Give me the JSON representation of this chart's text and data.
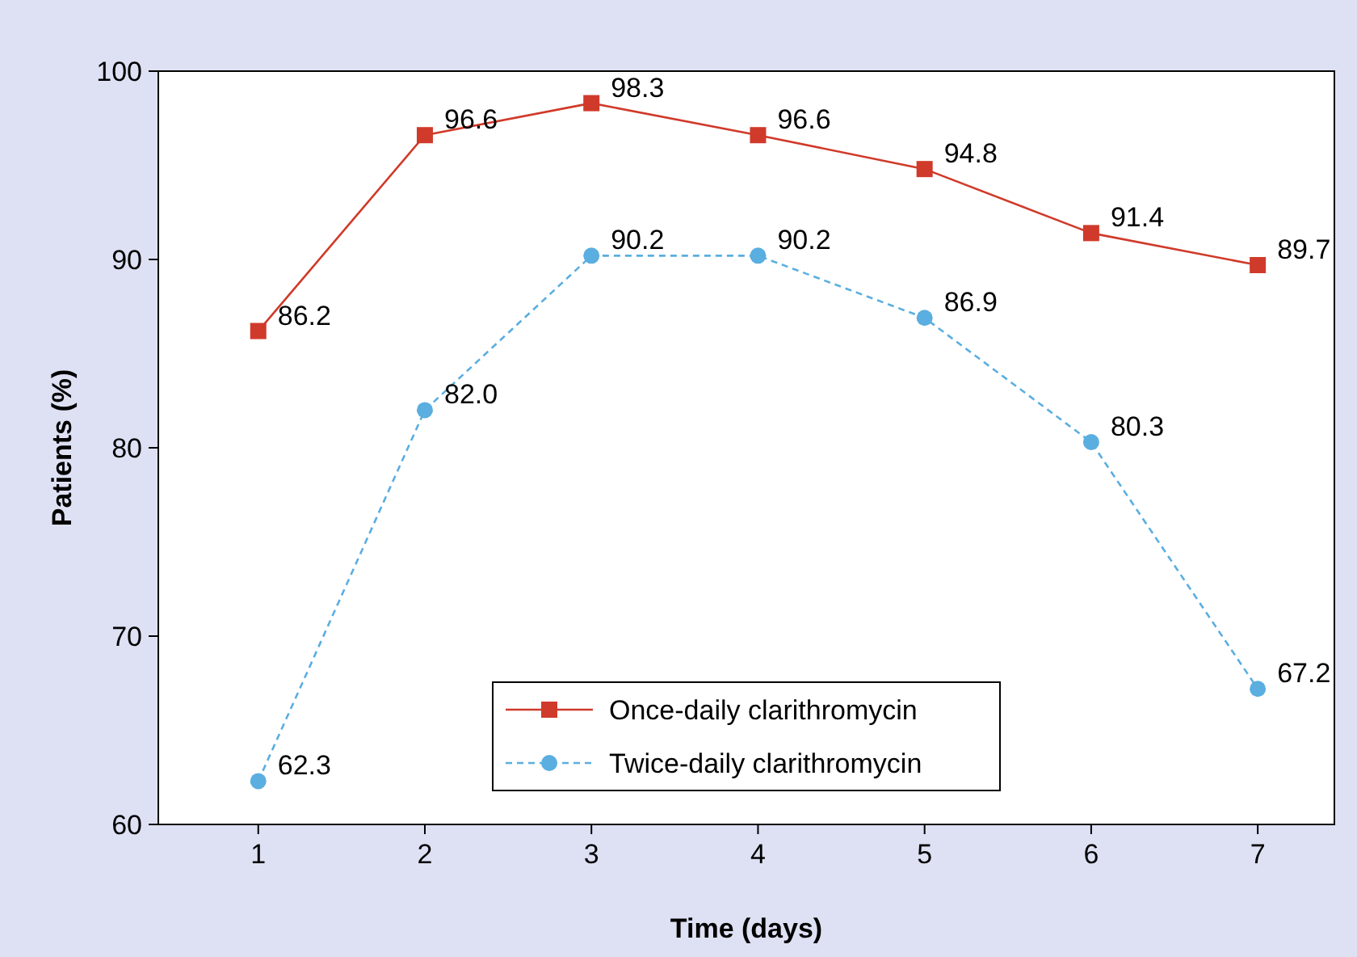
{
  "chart_data": {
    "type": "line",
    "xlabel": "Time (days)",
    "ylabel": "Patients (%)",
    "x": [
      1,
      2,
      3,
      4,
      5,
      6,
      7
    ],
    "series": [
      {
        "name": "Once-daily clarithromycin",
        "color": "#d03a2a",
        "marker": "square",
        "line_style": "solid",
        "values": [
          86.2,
          96.6,
          98.3,
          96.6,
          94.8,
          91.4,
          89.7
        ],
        "value_labels": [
          "86.2",
          "96.6",
          "98.3",
          "96.6",
          "94.8",
          "91.4",
          "89.7"
        ]
      },
      {
        "name": "Twice-daily clarithromycin",
        "color": "#5aaee0",
        "marker": "circle",
        "line_style": "dashed",
        "values": [
          62.3,
          82.0,
          90.2,
          90.2,
          86.9,
          80.3,
          67.2
        ],
        "value_labels": [
          "62.3",
          "82.0",
          "90.2",
          "90.2",
          "86.9",
          "80.3",
          "67.2"
        ]
      }
    ],
    "xlim": [
      0.4,
      7.46
    ],
    "xticks": [
      1,
      2,
      3,
      4,
      5,
      6,
      7
    ],
    "ylim": [
      60,
      100
    ],
    "yticks": [
      60,
      70,
      80,
      90,
      100
    ],
    "grid": false,
    "legend": "bottom"
  }
}
